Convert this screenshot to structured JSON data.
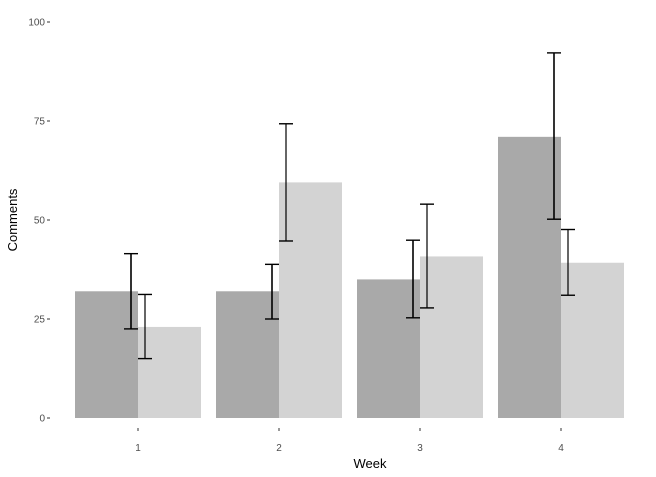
{
  "chart_data": {
    "type": "bar",
    "title": "",
    "xlabel": "Week",
    "ylabel": "Comments",
    "categories": [
      "1",
      "2",
      "3",
      "4"
    ],
    "ylim": [
      0,
      100
    ],
    "yticks": [
      0,
      25,
      50,
      75,
      100
    ],
    "grid": false,
    "series": [
      {
        "color": "#a9a9a9",
        "values": [
          32,
          32,
          35,
          71
        ],
        "error_low": [
          22.5,
          25,
          25.3,
          50.2
        ],
        "error_high": [
          41.5,
          38.8,
          44.9,
          92.2
        ]
      },
      {
        "color": "#d3d3d3",
        "values": [
          23,
          59.5,
          40.8,
          39.2
        ],
        "error_low": [
          15,
          44.7,
          27.8,
          31
        ],
        "error_high": [
          31.2,
          74.3,
          54,
          47.6
        ]
      }
    ]
  }
}
